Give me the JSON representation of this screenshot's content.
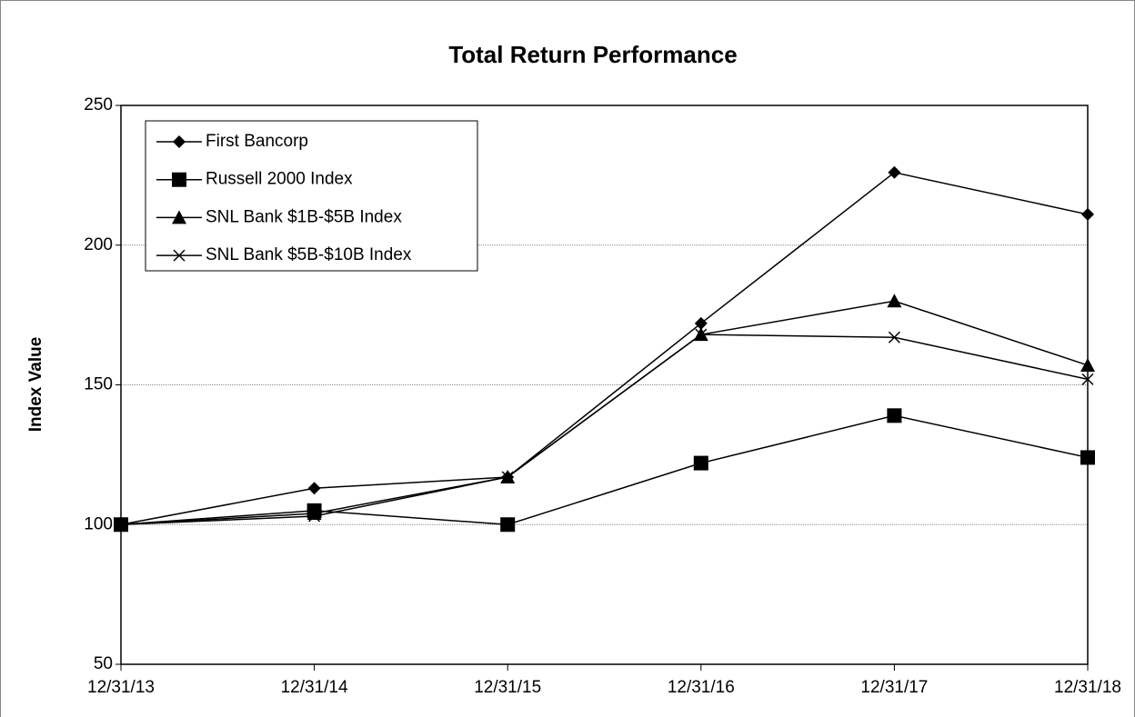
{
  "chart_data": {
    "type": "line",
    "title": "Total Return Performance",
    "y_label": "Index Value",
    "categories": [
      "12/31/13",
      "12/31/14",
      "12/31/15",
      "12/31/16",
      "12/31/17",
      "12/31/18"
    ],
    "series": [
      {
        "name": "First Bancorp",
        "color": "#000000",
        "marker": "diamond",
        "values": [
          100,
          113,
          117,
          172,
          226,
          211
        ]
      },
      {
        "name": "Russell 2000 Index",
        "color": "#000000",
        "marker": "square",
        "values": [
          100,
          105,
          100,
          122,
          139,
          124
        ]
      },
      {
        "name": "SNL Bank $1B-$5B Index",
        "color": "#000000",
        "marker": "triangle",
        "values": [
          100,
          104,
          117,
          168,
          180,
          157
        ]
      },
      {
        "name": "SNL Bank $5B-$10B Index",
        "color": "#000000",
        "marker": "x",
        "values": [
          100,
          103,
          117,
          168,
          167,
          152
        ]
      }
    ],
    "ylim": [
      50,
      250
    ],
    "yticks": [
      50,
      100,
      150,
      200,
      250
    ],
    "grid": true,
    "legend": "upper left"
  }
}
